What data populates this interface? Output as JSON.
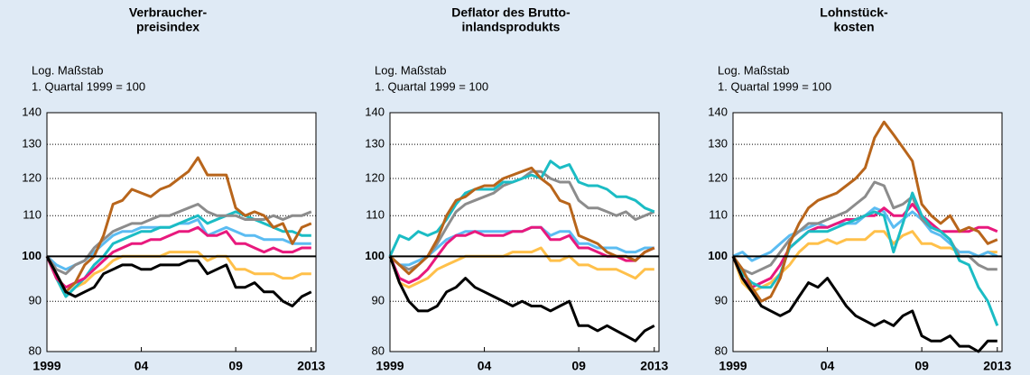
{
  "chart_data": [
    {
      "type": "line",
      "title": [
        "Verbraucher-",
        "preisindex"
      ],
      "annotations": [
        "Log. Maßstab",
        "1. Quartal 1999 = 100"
      ],
      "log_scale": true,
      "grid": "dotted",
      "reference_line": 100,
      "ylim": [
        80,
        140
      ],
      "yticks": [
        80,
        90,
        100,
        110,
        120,
        130,
        140
      ],
      "xlim": [
        1999,
        2013.25
      ],
      "xticks": [
        1999,
        {
          "value": 2004,
          "label": "04"
        },
        {
          "value": 2009,
          "label": "09"
        },
        2013
      ],
      "x": [
        1999,
        1999.5,
        2000,
        2000.5,
        2001,
        2001.5,
        2002,
        2002.5,
        2003,
        2003.5,
        2004,
        2004.5,
        2005,
        2005.5,
        2006,
        2006.5,
        2007,
        2007.5,
        2008,
        2008.5,
        2009,
        2009.5,
        2010,
        2010.5,
        2011,
        2011.5,
        2012,
        2012.5,
        2013
      ],
      "series": [
        {
          "color": "#ffc04a",
          "values": [
            100,
            95,
            91,
            93,
            94,
            96,
            97,
            99,
            100,
            100,
            100,
            100,
            100,
            101,
            101,
            101,
            101,
            99,
            100,
            100,
            97,
            97,
            96,
            96,
            96,
            95,
            95,
            96,
            96
          ]
        },
        {
          "color": "#5bbcf2",
          "values": [
            100,
            98,
            97,
            98,
            99,
            101,
            103,
            105,
            106,
            106,
            107,
            107,
            107,
            107,
            108,
            108,
            109,
            105,
            106,
            107,
            106,
            105,
            105,
            104,
            104,
            104,
            103,
            103,
            103
          ]
        },
        {
          "color": "#1bbcc4",
          "values": [
            100,
            95,
            91,
            93,
            95,
            98,
            100,
            103,
            104,
            105,
            106,
            106,
            107,
            107,
            108,
            109,
            110,
            108,
            109,
            110,
            111,
            110,
            109,
            108,
            107,
            106,
            106,
            105,
            105
          ]
        },
        {
          "color": "#e8197d",
          "values": [
            100,
            95,
            93,
            94,
            95,
            97,
            99,
            101,
            102,
            103,
            103,
            104,
            104,
            105,
            106,
            106,
            107,
            105,
            105,
            106,
            103,
            103,
            102,
            101,
            102,
            101,
            101,
            102,
            102
          ]
        },
        {
          "color": "#8c8c8c",
          "values": [
            100,
            97,
            96,
            98,
            99,
            102,
            104,
            106,
            107,
            108,
            108,
            109,
            110,
            110,
            111,
            112,
            113,
            111,
            110,
            110,
            110,
            109,
            109,
            109,
            110,
            109,
            110,
            110,
            111
          ]
        },
        {
          "color": "#b8651b",
          "values": [
            100,
            96,
            92,
            94,
            98,
            100,
            105,
            113,
            114,
            117,
            116,
            115,
            117,
            118,
            120,
            122,
            126,
            121,
            121,
            121,
            112,
            110,
            111,
            110,
            107,
            108,
            103,
            107,
            108
          ]
        },
        {
          "color": "#000000",
          "values": [
            100,
            96,
            92,
            91,
            92,
            93,
            96,
            97,
            98,
            98,
            97,
            97,
            98,
            98,
            98,
            99,
            99,
            96,
            97,
            98,
            93,
            93,
            94,
            92,
            92,
            90,
            89,
            91,
            92
          ]
        }
      ]
    },
    {
      "type": "line",
      "title": [
        "Deflator des Brutto-",
        "inlandsprodukts"
      ],
      "annotations": [
        "Log. Maßstab",
        "1. Quartal 1999 = 100"
      ],
      "log_scale": true,
      "grid": "dotted",
      "reference_line": 100,
      "ylim": [
        80,
        140
      ],
      "yticks": [
        80,
        90,
        100,
        110,
        120,
        130,
        140
      ],
      "xlim": [
        1999,
        2013.25
      ],
      "xticks": [
        1999,
        {
          "value": 2004,
          "label": "04"
        },
        {
          "value": 2009,
          "label": "09"
        },
        2013
      ],
      "x": [
        1999,
        1999.5,
        2000,
        2000.5,
        2001,
        2001.5,
        2002,
        2002.5,
        2003,
        2003.5,
        2004,
        2004.5,
        2005,
        2005.5,
        2006,
        2006.5,
        2007,
        2007.5,
        2008,
        2008.5,
        2009,
        2009.5,
        2010,
        2010.5,
        2011,
        2011.5,
        2012,
        2012.5,
        2013
      ],
      "series": [
        {
          "color": "#ffc04a",
          "values": [
            100,
            94,
            93,
            94,
            95,
            97,
            98,
            99,
            100,
            100,
            100,
            100,
            100,
            101,
            101,
            101,
            102,
            99,
            99,
            100,
            98,
            98,
            97,
            97,
            97,
            96,
            95,
            97,
            97
          ]
        },
        {
          "color": "#5bbcf2",
          "values": [
            100,
            98,
            98,
            99,
            100,
            102,
            104,
            105,
            106,
            106,
            106,
            106,
            106,
            106,
            106,
            107,
            107,
            105,
            106,
            106,
            103,
            103,
            102,
            102,
            102,
            101,
            101,
            102,
            102
          ]
        },
        {
          "color": "#e8197d",
          "values": [
            100,
            95,
            94,
            95,
            97,
            100,
            103,
            105,
            105,
            106,
            105,
            105,
            105,
            106,
            106,
            107,
            107,
            104,
            104,
            105,
            102,
            102,
            101,
            100,
            100,
            99,
            99,
            101,
            102
          ]
        },
        {
          "color": "#8c8c8c",
          "values": [
            100,
            98,
            97,
            98,
            100,
            103,
            107,
            111,
            113,
            114,
            115,
            116,
            118,
            119,
            120,
            122,
            122,
            120,
            119,
            119,
            114,
            112,
            112,
            111,
            110,
            111,
            109,
            110,
            111
          ]
        },
        {
          "color": "#1bbcc4",
          "values": [
            100,
            105,
            104,
            106,
            105,
            106,
            109,
            113,
            116,
            117,
            117,
            117,
            119,
            119,
            120,
            121,
            120,
            125,
            123,
            124,
            119,
            118,
            118,
            117,
            115,
            115,
            114,
            112,
            111
          ]
        },
        {
          "color": "#b8651b",
          "values": [
            100,
            98,
            96,
            98,
            100,
            104,
            110,
            114,
            115,
            117,
            118,
            118,
            120,
            121,
            122,
            123,
            120,
            118,
            114,
            113,
            105,
            104,
            103,
            101,
            100,
            100,
            99,
            101,
            102
          ]
        },
        {
          "color": "#000000",
          "values": [
            100,
            94,
            90,
            88,
            88,
            89,
            92,
            93,
            95,
            93,
            92,
            91,
            90,
            89,
            90,
            89,
            89,
            88,
            89,
            90,
            85,
            85,
            84,
            85,
            84,
            83,
            82,
            84,
            85
          ]
        }
      ]
    },
    {
      "type": "line",
      "title": [
        "Lohnstück-",
        "kosten"
      ],
      "annotations": [
        "Log. Maßstab",
        "1. Quartal 1999 = 100"
      ],
      "log_scale": true,
      "grid": "dotted",
      "reference_line": 100,
      "ylim": [
        80,
        140
      ],
      "yticks": [
        80,
        90,
        100,
        110,
        120,
        130,
        140
      ],
      "xlim": [
        1999,
        2013.25
      ],
      "xticks": [
        1999,
        {
          "value": 2004,
          "label": "04"
        },
        {
          "value": 2009,
          "label": "09"
        },
        2013
      ],
      "x": [
        1999,
        1999.5,
        2000,
        2000.5,
        2001,
        2001.5,
        2002,
        2002.5,
        2003,
        2003.5,
        2004,
        2004.5,
        2005,
        2005.5,
        2006,
        2006.5,
        2007,
        2007.5,
        2008,
        2008.5,
        2009,
        2009.5,
        2010,
        2010.5,
        2011,
        2011.5,
        2012,
        2012.5,
        2013
      ],
      "series": [
        {
          "color": "#ffc04a",
          "values": [
            100,
            94,
            92,
            93,
            94,
            96,
            98,
            101,
            103,
            103,
            104,
            103,
            104,
            104,
            104,
            106,
            106,
            103,
            105,
            106,
            103,
            103,
            102,
            102,
            101,
            101,
            100,
            101,
            101
          ]
        },
        {
          "color": "#5bbcf2",
          "values": [
            100,
            101,
            99,
            100,
            101,
            103,
            105,
            106,
            107,
            108,
            107,
            108,
            108,
            108,
            110,
            112,
            111,
            107,
            109,
            111,
            109,
            106,
            105,
            103,
            101,
            101,
            100,
            101,
            100
          ]
        },
        {
          "color": "#8c8c8c",
          "values": [
            100,
            97,
            96,
            97,
            98,
            101,
            104,
            106,
            108,
            108,
            109,
            110,
            111,
            113,
            115,
            119,
            118,
            112,
            113,
            115,
            109,
            107,
            106,
            104,
            100,
            100,
            98,
            97,
            97
          ]
        },
        {
          "color": "#e8197d",
          "values": [
            100,
            95,
            93,
            94,
            95,
            98,
            102,
            104,
            106,
            107,
            107,
            108,
            109,
            109,
            110,
            110,
            112,
            110,
            110,
            113,
            110,
            108,
            106,
            106,
            106,
            106,
            107,
            107,
            106
          ]
        },
        {
          "color": "#1bbcc4",
          "values": [
            100,
            96,
            94,
            93,
            93,
            96,
            102,
            104,
            106,
            106,
            106,
            107,
            108,
            109,
            110,
            111,
            110,
            101,
            108,
            116,
            110,
            107,
            106,
            104,
            99,
            98,
            93,
            90,
            85
          ]
        },
        {
          "color": "#b8651b",
          "values": [
            100,
            97,
            93,
            90,
            91,
            95,
            103,
            108,
            112,
            114,
            115,
            116,
            118,
            120,
            123,
            132,
            137,
            133,
            129,
            125,
            113,
            110,
            108,
            110,
            106,
            107,
            106,
            103,
            104
          ]
        },
        {
          "color": "#000000",
          "values": [
            100,
            95,
            92,
            89,
            88,
            87,
            88,
            91,
            94,
            93,
            95,
            92,
            89,
            87,
            86,
            85,
            86,
            85,
            87,
            88,
            83,
            82,
            82,
            83,
            81,
            81,
            80,
            82,
            82
          ]
        }
      ]
    }
  ]
}
